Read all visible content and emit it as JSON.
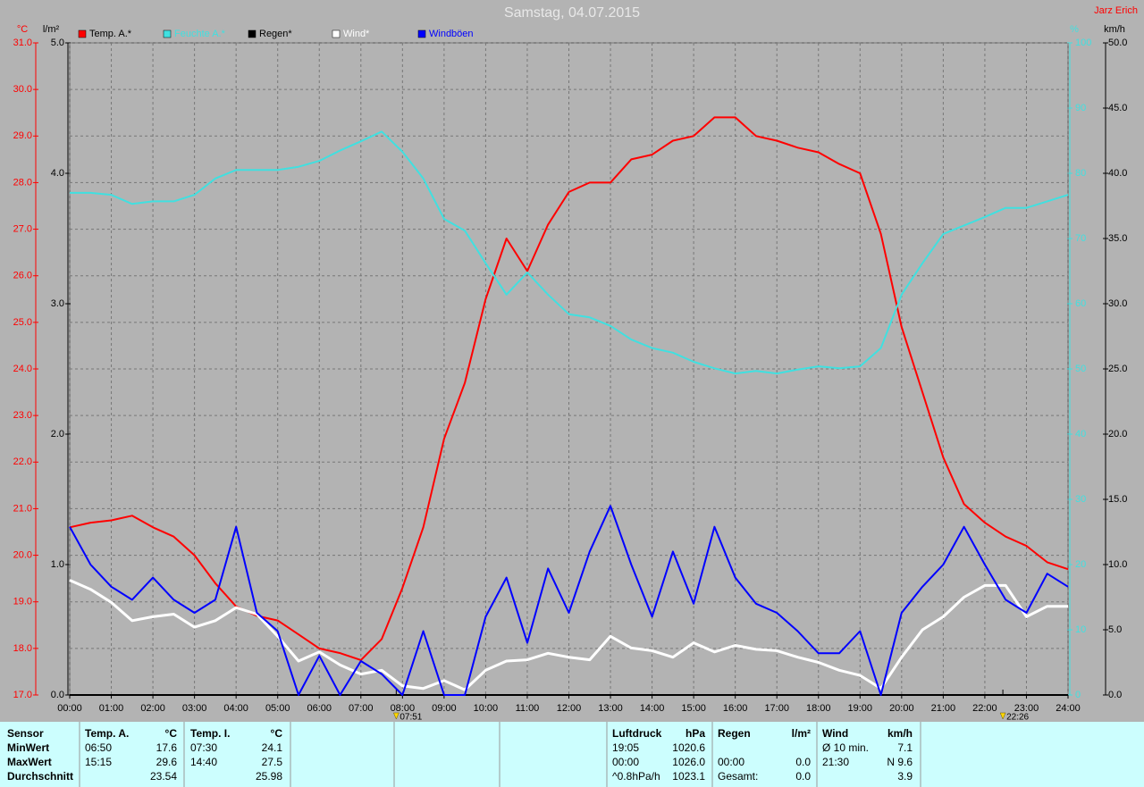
{
  "chart_data": {
    "type": "line",
    "title": "Samstag, 04.07.2015",
    "author": "Jarz Erich",
    "x": [
      0,
      0.5,
      1,
      1.5,
      2,
      2.5,
      3,
      3.5,
      4,
      4.5,
      5,
      5.5,
      6,
      6.5,
      7,
      7.5,
      8,
      8.5,
      9,
      9.5,
      10,
      10.5,
      11,
      11.5,
      12,
      12.5,
      13,
      13.5,
      14,
      14.5,
      15,
      15.5,
      16,
      16.5,
      17,
      17.5,
      18,
      18.5,
      19,
      19.5,
      20,
      20.5,
      21,
      21.5,
      22,
      22.5,
      23,
      23.5,
      24
    ],
    "xlim": [
      0,
      24
    ],
    "xticks": [
      {
        "value": 0,
        "label": "00:00"
      },
      {
        "value": 1,
        "label": "01:00"
      },
      {
        "value": 2,
        "label": "02:00"
      },
      {
        "value": 3,
        "label": "03:00"
      },
      {
        "value": 4,
        "label": "04:00"
      },
      {
        "value": 5,
        "label": "05:00"
      },
      {
        "value": 6,
        "label": "06:00"
      },
      {
        "value": 7,
        "label": "07:00"
      },
      {
        "value": 8,
        "label": "08:00"
      },
      {
        "value": 9,
        "label": "09:00"
      },
      {
        "value": 10,
        "label": "10:00"
      },
      {
        "value": 11,
        "label": "11:00"
      },
      {
        "value": 12,
        "label": "12:00"
      },
      {
        "value": 13,
        "label": "13:00"
      },
      {
        "value": 14,
        "label": "14:00"
      },
      {
        "value": 15,
        "label": "15:00"
      },
      {
        "value": 16,
        "label": "16:00"
      },
      {
        "value": 17,
        "label": "17:00"
      },
      {
        "value": 18,
        "label": "18:00"
      },
      {
        "value": 19,
        "label": "19:00"
      },
      {
        "value": 20,
        "label": "20:00"
      },
      {
        "value": 21,
        "label": "21:00"
      },
      {
        "value": 22,
        "label": "22:00"
      },
      {
        "value": 23,
        "label": "23:00"
      },
      {
        "value": 24,
        "label": "24:00"
      }
    ],
    "ylabel": "°C",
    "ylim": [
      17,
      31
    ],
    "yticks": [
      {
        "value": 17,
        "label": "17.0"
      },
      {
        "value": 18,
        "label": "18.0"
      },
      {
        "value": 19,
        "label": "19.0"
      },
      {
        "value": 20,
        "label": "20.0"
      },
      {
        "value": 21,
        "label": "21.0"
      },
      {
        "value": 22,
        "label": "22.0"
      },
      {
        "value": 23,
        "label": "23.0"
      },
      {
        "value": 24,
        "label": "24.0"
      },
      {
        "value": 25,
        "label": "25.0"
      },
      {
        "value": 26,
        "label": "26.0"
      },
      {
        "value": 27,
        "label": "27.0"
      },
      {
        "value": 28,
        "label": "28.0"
      },
      {
        "value": 29,
        "label": "29.0"
      },
      {
        "value": 30,
        "label": "30.0"
      },
      {
        "value": 31,
        "label": "31.0"
      }
    ],
    "y2label": "l/m²",
    "y2lim": [
      0,
      5
    ],
    "y2ticks": [
      {
        "value": 0,
        "label": "0.0"
      },
      {
        "value": 1,
        "label": "1.0"
      },
      {
        "value": 2,
        "label": "2.0"
      },
      {
        "value": 3,
        "label": "3.0"
      },
      {
        "value": 4,
        "label": "4.0"
      },
      {
        "value": 5,
        "label": "5.0"
      }
    ],
    "y3label": "%",
    "y3lim": [
      0,
      100
    ],
    "y3ticks": [
      0,
      10,
      20,
      30,
      40,
      50,
      60,
      70,
      80,
      90,
      100
    ],
    "y4label": "km/h",
    "y4lim": [
      0,
      50
    ],
    "y4ticks": [
      {
        "value": 0,
        "label": "0.0"
      },
      {
        "value": 5,
        "label": "5.0"
      },
      {
        "value": 10,
        "label": "10.0"
      },
      {
        "value": 15,
        "label": "15.0"
      },
      {
        "value": 20,
        "label": "20.0"
      },
      {
        "value": 25,
        "label": "25.0"
      },
      {
        "value": 30,
        "label": "30.0"
      },
      {
        "value": 35,
        "label": "35.0"
      },
      {
        "value": 40,
        "label": "40.0"
      },
      {
        "value": 45,
        "label": "45.0"
      },
      {
        "value": 50,
        "label": "50.0"
      }
    ],
    "grid": true,
    "series": [
      {
        "name": "Temp. A.*",
        "color": "#ff0000",
        "axis": "y",
        "values": [
          20.6,
          20.7,
          20.75,
          20.85,
          20.6,
          20.4,
          20.0,
          19.4,
          18.9,
          18.7,
          18.6,
          18.3,
          18.0,
          17.9,
          17.75,
          18.2,
          19.3,
          20.6,
          22.5,
          23.7,
          25.5,
          26.8,
          26.1,
          27.1,
          27.8,
          28.0,
          28.0,
          28.5,
          28.6,
          28.9,
          29.0,
          29.4,
          29.4,
          29.0,
          28.9,
          28.75,
          28.65,
          28.4,
          28.2,
          26.9,
          24.9,
          23.5,
          22.1,
          21.1,
          20.7,
          20.4,
          20.2,
          19.85,
          19.7
        ]
      },
      {
        "name": "Feuchte A.*",
        "color": "#40e0e0",
        "axis": "y3",
        "values": [
          77,
          77,
          76.7,
          75.3,
          75.7,
          75.7,
          76.7,
          79.2,
          80.5,
          80.5,
          80.5,
          81,
          81.9,
          83.5,
          84.9,
          86.4,
          83.3,
          79.2,
          73,
          71.2,
          66.2,
          61.4,
          64.8,
          61.4,
          58.4,
          57.9,
          56.6,
          54.5,
          53.2,
          52.5,
          51.1,
          50.1,
          49.3,
          49.7,
          49.3,
          49.9,
          50.4,
          50.1,
          50.4,
          53.2,
          61.4,
          66.2,
          70.7,
          72,
          73.3,
          74.7,
          74.7,
          75.7,
          76.7
        ]
      },
      {
        "name": "Regen*",
        "color": "#000000",
        "axis": "y2",
        "values": [
          0,
          0,
          0,
          0,
          0,
          0,
          0,
          0,
          0,
          0,
          0,
          0,
          0,
          0,
          0,
          0,
          0,
          0,
          0,
          0,
          0,
          0,
          0,
          0,
          0,
          0,
          0,
          0,
          0,
          0,
          0,
          0,
          0,
          0,
          0,
          0,
          0,
          0,
          0,
          0,
          0,
          0,
          0,
          0,
          0,
          0,
          0,
          0,
          0
        ]
      },
      {
        "name": "Wind*",
        "color": "#ffffff",
        "axis": "y4",
        "values": [
          8.8,
          8.1,
          7.1,
          5.7,
          6.0,
          6.2,
          5.2,
          5.7,
          6.7,
          6.2,
          4.5,
          2.6,
          3.3,
          2.3,
          1.6,
          1.9,
          0.7,
          0.5,
          1.1,
          0.4,
          1.9,
          2.6,
          2.7,
          3.2,
          2.9,
          2.7,
          4.5,
          3.6,
          3.4,
          2.9,
          4.0,
          3.3,
          3.8,
          3.5,
          3.4,
          2.9,
          2.5,
          1.9,
          1.5,
          0.5,
          2.9,
          5.0,
          6.0,
          7.5,
          8.4,
          8.4,
          6.0,
          6.8,
          6.8
        ]
      },
      {
        "name": "Windböen",
        "color": "#0000ff",
        "axis": "y4",
        "values": [
          12.9,
          10,
          8.3,
          7.3,
          9,
          7.3,
          6.3,
          7.3,
          12.9,
          6.3,
          4.9,
          0,
          3,
          0,
          2.6,
          1.6,
          0,
          4.9,
          0,
          0,
          6,
          9,
          4,
          9.7,
          6.3,
          11,
          14.5,
          10,
          6,
          11,
          7,
          12.9,
          9,
          7,
          6.3,
          4.9,
          3.2,
          3.2,
          4.9,
          0,
          6.3,
          8.3,
          10,
          12.9,
          10,
          7.3,
          6.3,
          9.3,
          8.3
        ]
      }
    ],
    "markers": [
      {
        "x": 7.85,
        "label": "07:51"
      },
      {
        "x": 22.4333,
        "label": "22:26"
      }
    ]
  },
  "table": {
    "rows": [
      [
        "Sensor",
        "Temp. A.",
        "°C",
        "Temp. I.",
        "°C",
        "Luftdruck",
        "hPa",
        "Regen",
        "l/m²",
        "Wind",
        "km/h"
      ],
      [
        "MinWert",
        "06:50",
        "17.6",
        "07:30",
        "24.1",
        "19:05",
        "1020.6",
        null,
        null,
        "Ø 10 min.",
        "7.1"
      ],
      [
        "MaxWert",
        "15:15",
        "29.6",
        "14:40",
        "27.5",
        "00:00",
        "1026.0",
        "00:00",
        "0.0",
        "21:30",
        "N 9.6"
      ],
      [
        "Durchschnitt",
        null,
        "23.54",
        null,
        "25.98",
        "^0.8hPa/h",
        "1023.1",
        "Gesamt:",
        "0.0",
        null,
        "3.9"
      ]
    ]
  }
}
